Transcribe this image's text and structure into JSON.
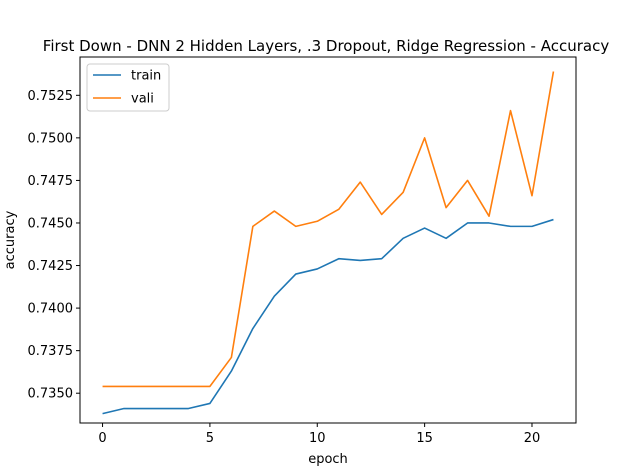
{
  "chart_data": {
    "type": "line",
    "title": "First Down - DNN 2 Hidden Layers, .3 Dropout, Ridge Regression - Accuracy",
    "xlabel": "epoch",
    "ylabel": "accuracy",
    "xlim": [
      -1.05,
      22.05
    ],
    "ylim": [
      0.73325,
      0.75475
    ],
    "xticks": [
      0,
      5,
      10,
      15,
      20
    ],
    "yticks": [
      0.735,
      0.7375,
      0.74,
      0.7425,
      0.745,
      0.7475,
      0.75,
      0.7525
    ],
    "legend_position": "upper-left",
    "grid": false,
    "x": [
      0,
      1,
      2,
      3,
      4,
      5,
      6,
      7,
      8,
      9,
      10,
      11,
      12,
      13,
      14,
      15,
      16,
      17,
      18,
      19,
      20,
      21
    ],
    "series": [
      {
        "name": "train",
        "color": "#1f77b4",
        "values": [
          0.7338,
          0.7341,
          0.7341,
          0.7341,
          0.7341,
          0.7344,
          0.7363,
          0.7388,
          0.7407,
          0.742,
          0.7423,
          0.7429,
          0.7428,
          0.7429,
          0.7441,
          0.7447,
          0.7441,
          0.745,
          0.745,
          0.7448,
          0.7448,
          0.7452
        ]
      },
      {
        "name": "vali",
        "color": "#ff7f0e",
        "values": [
          0.7354,
          0.7354,
          0.7354,
          0.7354,
          0.7354,
          0.7354,
          0.7371,
          0.7448,
          0.7457,
          0.7448,
          0.7451,
          0.7458,
          0.7474,
          0.7455,
          0.7468,
          0.75,
          0.7459,
          0.7475,
          0.7454,
          0.7516,
          0.7466,
          0.7539
        ]
      }
    ]
  }
}
